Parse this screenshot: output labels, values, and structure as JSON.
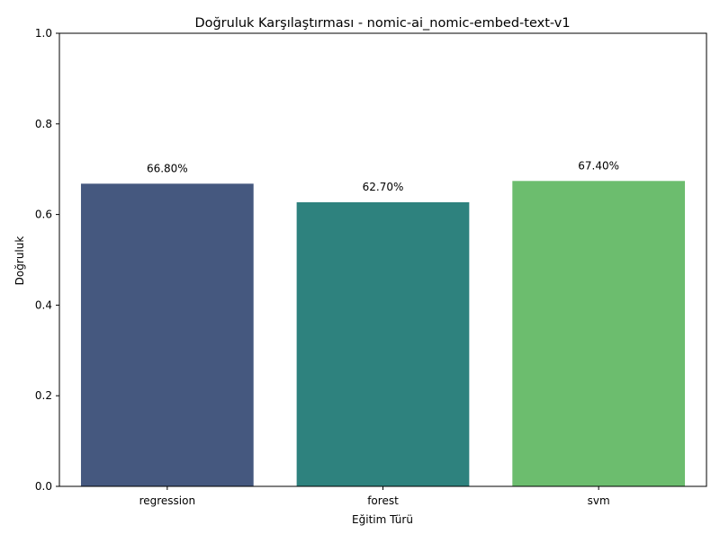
{
  "chart_data": {
    "type": "bar",
    "title": "Doğruluk Karşılaştırması - nomic-ai_nomic-embed-text-v1",
    "xlabel": "Eğitim Türü",
    "ylabel": "Doğruluk",
    "categories": [
      "regression",
      "forest",
      "svm"
    ],
    "values": [
      0.668,
      0.627,
      0.674
    ],
    "value_labels": [
      "66.80%",
      "62.70%",
      "67.40%"
    ],
    "colors": [
      "#45587f",
      "#2e827e",
      "#6cbd6e"
    ],
    "ylim": [
      0,
      1.0
    ],
    "yticks": [
      0.0,
      0.2,
      0.4,
      0.6,
      0.8,
      1.0
    ],
    "ytick_labels": [
      "0.0",
      "0.2",
      "0.4",
      "0.6",
      "0.8",
      "1.0"
    ],
    "grid": false,
    "legend": "none"
  }
}
